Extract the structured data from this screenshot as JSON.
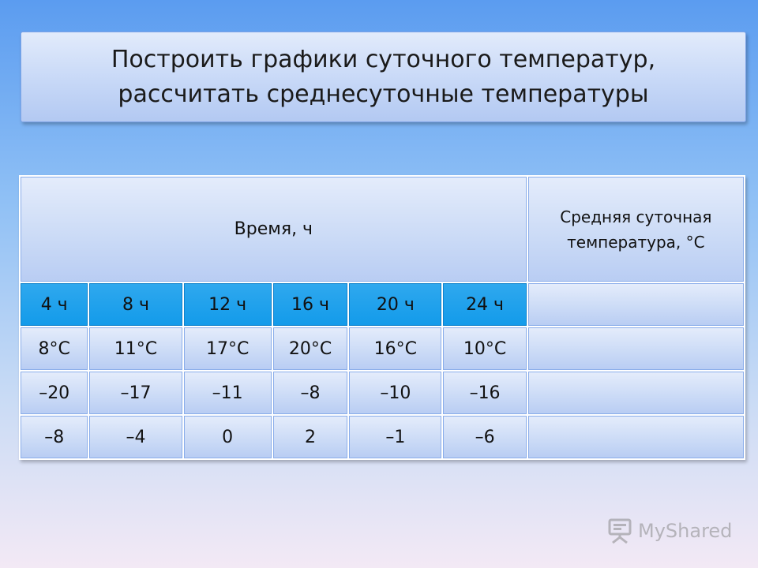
{
  "title": "Построить графики суточного температур,\nрассчитать среднесуточные температуры",
  "table": {
    "time_header": "Время, ч",
    "avg_header": "Средняя суточная\nтемпература, °С",
    "hours": [
      "4 ч",
      "8 ч",
      "12 ч",
      "16 ч",
      "20 ч",
      "24 ч"
    ],
    "rows": [
      [
        "8°С",
        "11°С",
        "17°С",
        "20°С",
        "16°С",
        "10°С"
      ],
      [
        "–20",
        "–17",
        "–11",
        "–8",
        "–10",
        "–16"
      ],
      [
        "–8",
        "–4",
        "0",
        "2",
        "–1",
        "–6"
      ]
    ]
  },
  "watermark": "MyShared",
  "colors": {
    "hour_row": "#139bea",
    "cell": "#cadaf6",
    "background_top": "#5b9cf0"
  }
}
